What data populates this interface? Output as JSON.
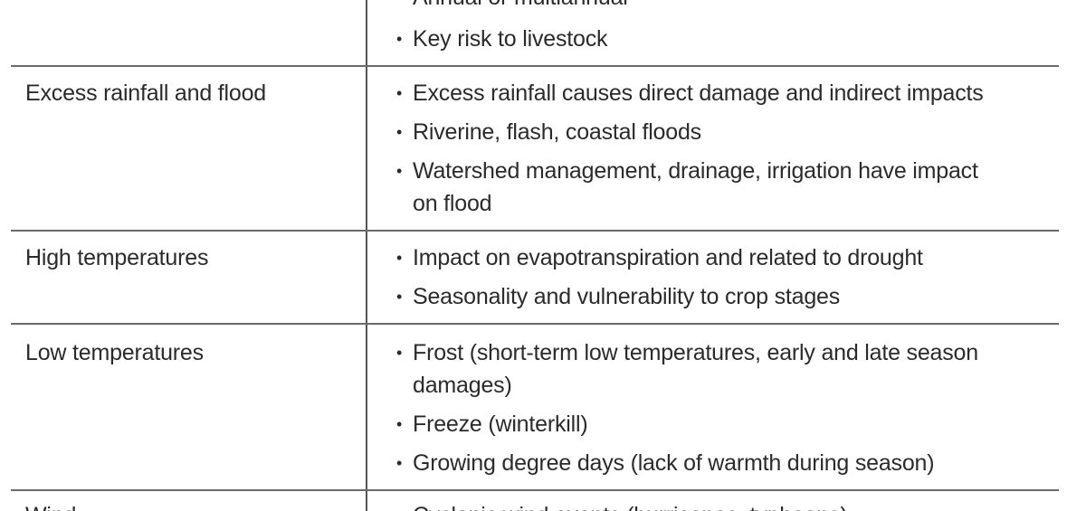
{
  "rows": [
    {
      "hazard": "",
      "points": [
        "Annual or multiannual",
        "Key risk to livestock"
      ]
    },
    {
      "hazard": "Excess rainfall and flood",
      "points": [
        "Excess rainfall causes direct damage and indirect impacts",
        "Riverine, flash, coastal floods",
        "Watershed management, drainage, irrigation have impact",
        "on flood"
      ]
    },
    {
      "hazard": "High temperatures",
      "points": [
        "Impact on evapotranspiration and related to drought",
        "Seasonality and vulnerability to crop stages"
      ]
    },
    {
      "hazard": "Low temperatures",
      "points": [
        "Frost (short-term low temperatures, early and late season",
        "damages)",
        "Freeze (winterkill)",
        "Growing degree days (lack of warmth during season)"
      ]
    },
    {
      "hazard": "Wind",
      "points": [
        "Cyclonic wind events (hurricanes, typhoons)"
      ]
    }
  ],
  "bullet_glyph": "•"
}
